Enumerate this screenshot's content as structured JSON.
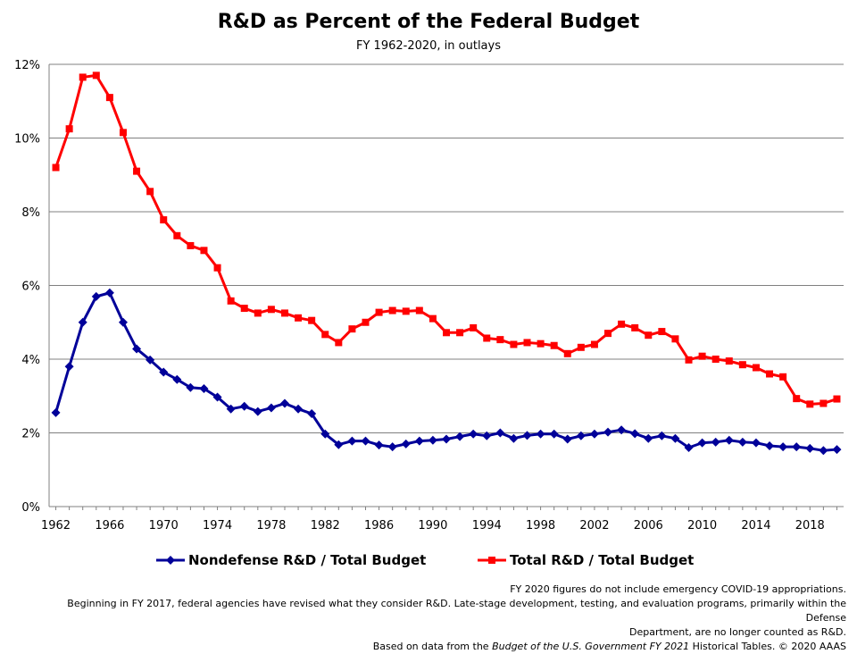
{
  "title": "R&D as Percent of the Federal Budget",
  "subtitle": "FY 1962-2020, in outlays",
  "legend": {
    "nondefense": "Nondefense R&D / Total Budget",
    "total": "Total R&D / Total Budget"
  },
  "notes": {
    "line1": "FY 2020 figures do not include emergency  COVID-19 appropriations.",
    "line2": "Beginning in FY 2017, federal agencies have revised what they consider R&D. Late-stage development,  testing, and evaluation programs, primarily within the Defense",
    "line3": "Department,  are no longer counted  as R&D.",
    "line4_pre": "Based on data from the ",
    "line4_italic": "Budget of the U.S. Government FY 2021",
    "line4_post": " Historical Tables. © 2020 AAAS"
  },
  "colors": {
    "nondefense": "#000099",
    "total": "#ff0000",
    "grid": "#808080"
  },
  "chart_data": {
    "type": "line",
    "title": "R&D as Percent of the Federal Budget",
    "subtitle": "FY 1962-2020, in outlays",
    "x": [
      1962,
      1963,
      1964,
      1965,
      1966,
      1967,
      1968,
      1969,
      1970,
      1971,
      1972,
      1973,
      1974,
      1975,
      1976,
      1977,
      1978,
      1979,
      1980,
      1981,
      1982,
      1983,
      1984,
      1985,
      1986,
      1987,
      1988,
      1989,
      1990,
      1991,
      1992,
      1993,
      1994,
      1995,
      1996,
      1997,
      1998,
      1999,
      2000,
      2001,
      2002,
      2003,
      2004,
      2005,
      2006,
      2007,
      2008,
      2009,
      2010,
      2011,
      2012,
      2013,
      2014,
      2015,
      2016,
      2017,
      2018,
      2019,
      2020
    ],
    "series": [
      {
        "name": "Nondefense R&D / Total Budget",
        "marker": "diamond",
        "values": [
          2.55,
          3.8,
          5.0,
          5.7,
          5.8,
          5.0,
          4.28,
          3.98,
          3.65,
          3.45,
          3.23,
          3.2,
          2.97,
          2.65,
          2.72,
          2.58,
          2.68,
          2.8,
          2.65,
          2.52,
          1.97,
          1.68,
          1.78,
          1.78,
          1.67,
          1.62,
          1.7,
          1.78,
          1.8,
          1.83,
          1.9,
          1.97,
          1.92,
          2.0,
          1.85,
          1.93,
          1.97,
          1.97,
          1.83,
          1.92,
          1.97,
          2.02,
          2.08,
          1.98,
          1.85,
          1.92,
          1.85,
          1.6,
          1.73,
          1.75,
          1.8,
          1.75,
          1.73,
          1.65,
          1.62,
          1.62,
          1.58,
          1.52,
          1.55
        ]
      },
      {
        "name": "Total R&D / Total Budget",
        "marker": "square",
        "values": [
          9.2,
          10.25,
          11.65,
          11.7,
          11.1,
          10.15,
          9.1,
          8.55,
          7.78,
          7.35,
          7.08,
          6.95,
          6.48,
          5.58,
          5.38,
          5.25,
          5.35,
          5.25,
          5.12,
          5.05,
          4.67,
          4.45,
          4.82,
          5.0,
          5.27,
          5.32,
          5.3,
          5.32,
          5.1,
          4.72,
          4.72,
          4.85,
          4.57,
          4.53,
          4.4,
          4.45,
          4.42,
          4.37,
          4.15,
          4.32,
          4.4,
          4.7,
          4.95,
          4.85,
          4.65,
          4.75,
          4.55,
          3.98,
          4.08,
          4.0,
          3.95,
          3.85,
          3.77,
          3.6,
          3.52,
          2.93,
          2.78,
          2.8,
          2.92
        ]
      }
    ],
    "xticks": [
      "1962",
      "1966",
      "1970",
      "1974",
      "1978",
      "1982",
      "1986",
      "1990",
      "1994",
      "1998",
      "2002",
      "2006",
      "2010",
      "2014",
      "2018"
    ],
    "yticks": [
      "0%",
      "2%",
      "4%",
      "6%",
      "8%",
      "10%",
      "12%"
    ],
    "ylim": [
      0,
      12
    ],
    "xlabel": "",
    "ylabel": "",
    "grid": true,
    "legend_position": "bottom"
  }
}
